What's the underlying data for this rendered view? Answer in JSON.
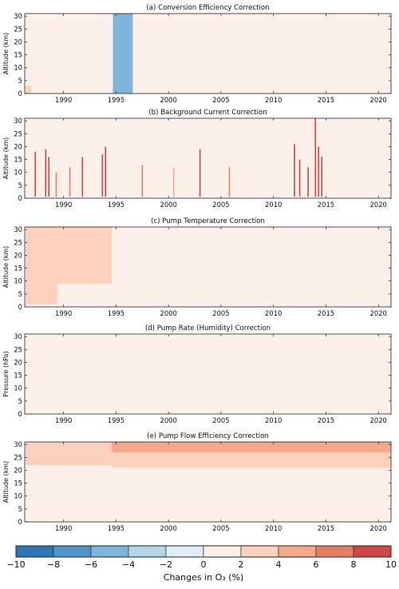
{
  "chart_data": [
    {
      "type": "heatmap",
      "title": "(a) Conversion Efficiency Correction",
      "ylabel": "Altitude (km)",
      "xlim": [
        1986.3,
        2021.2
      ],
      "ylim": [
        0,
        31
      ],
      "xticks": [
        "1990",
        "1995",
        "2000",
        "2005",
        "2010",
        "2015",
        "2020"
      ],
      "yticks": [
        "0",
        "5",
        "10",
        "15",
        "20",
        "25",
        "30"
      ],
      "background_change_percent": 0.7,
      "regions": [
        {
          "label": "mid-1990s negative correction",
          "x_start": 1994.7,
          "x_end": 1996.6,
          "y_range": [
            0,
            31
          ],
          "change_percent": -5
        },
        {
          "label": "early low-level positive correction",
          "x_start": 1986.4,
          "x_end": 1986.9,
          "y_range": [
            0,
            3
          ],
          "change_percent": 2.5
        }
      ]
    },
    {
      "type": "heatmap",
      "title": "(b) Background Current Correction",
      "ylabel": "Altitude (km)",
      "xlim": [
        1986.3,
        2021.2
      ],
      "ylim": [
        0,
        31
      ],
      "xticks": [
        "1990",
        "1995",
        "2000",
        "2005",
        "2010",
        "2015",
        "2020"
      ],
      "yticks": [
        "0",
        "5",
        "10",
        "15",
        "20",
        "25",
        "30"
      ],
      "background_change_percent": 0.7,
      "spikes": [
        {
          "x": 1987.3,
          "top": 18,
          "change_percent": 9
        },
        {
          "x": 1988.3,
          "top": 19,
          "change_percent": 10
        },
        {
          "x": 1988.6,
          "top": 16,
          "change_percent": 8
        },
        {
          "x": 1989.3,
          "top": 10,
          "change_percent": 6
        },
        {
          "x": 1990.6,
          "top": 12,
          "change_percent": 7
        },
        {
          "x": 1991.8,
          "top": 16,
          "change_percent": 8
        },
        {
          "x": 1993.7,
          "top": 17,
          "change_percent": 9
        },
        {
          "x": 1994.0,
          "top": 20,
          "change_percent": 10
        },
        {
          "x": 1997.5,
          "top": 13,
          "change_percent": 6
        },
        {
          "x": 2000.5,
          "top": 12,
          "change_percent": 5
        },
        {
          "x": 2003.0,
          "top": 19,
          "change_percent": 10
        },
        {
          "x": 2005.8,
          "top": 12,
          "change_percent": 7
        },
        {
          "x": 2012.0,
          "top": 21,
          "change_percent": 10
        },
        {
          "x": 2012.5,
          "top": 15,
          "change_percent": 8
        },
        {
          "x": 2013.3,
          "top": 12,
          "change_percent": 8
        },
        {
          "x": 2014.0,
          "top": 31,
          "change_percent": 10
        },
        {
          "x": 2014.3,
          "top": 20,
          "change_percent": 10
        },
        {
          "x": 2014.6,
          "top": 16,
          "change_percent": 8
        }
      ]
    },
    {
      "type": "heatmap",
      "title": "(c) Pump Temperature Correction",
      "ylabel": "Altitude (km)",
      "xlim": [
        1986.3,
        2021.2
      ],
      "ylim": [
        0,
        31
      ],
      "xticks": [
        "1990",
        "1995",
        "2000",
        "2005",
        "2010",
        "2015",
        "2020"
      ],
      "yticks": [
        "0",
        "5",
        "10",
        "15",
        "20",
        "25",
        "30"
      ],
      "background_change_percent": 0.5,
      "regions": [
        {
          "label": "early period full column",
          "x_start": 1986.4,
          "x_end": 1989.4,
          "y_range": [
            1,
            31
          ],
          "change_percent": 3
        },
        {
          "label": "1989-1994 upper layer",
          "x_start": 1989.4,
          "x_end": 1994.6,
          "y_range": [
            9,
            31
          ],
          "change_percent": 3
        },
        {
          "label": "1989-1994 lower layer",
          "x_start": 1989.4,
          "x_end": 1994.6,
          "y_range": [
            1,
            9
          ],
          "change_percent": 1.2
        }
      ]
    },
    {
      "type": "heatmap",
      "title": "(d) Pump Rate (Humidity) Correction",
      "ylabel": "Pressure (hPa)",
      "xlim": [
        1986.3,
        2021.2
      ],
      "ylim": [
        0,
        31
      ],
      "xticks": [
        "1990",
        "1995",
        "2000",
        "2005",
        "2010",
        "2015",
        "2020"
      ],
      "yticks": [
        "0",
        "5",
        "10",
        "15",
        "20",
        "25",
        "30"
      ],
      "background_change_percent": 0.6
    },
    {
      "type": "heatmap",
      "title": "(e) Pump Flow Efficiency Correction",
      "ylabel": "Altitude (km)",
      "xlim": [
        1986.3,
        2021.2
      ],
      "ylim": [
        0,
        31
      ],
      "xticks": [
        "1990",
        "1995",
        "2000",
        "2005",
        "2010",
        "2015",
        "2020"
      ],
      "yticks": [
        "0",
        "5",
        "10",
        "15",
        "20",
        "25",
        "30"
      ],
      "background_change_percent": 0.7,
      "regions": [
        {
          "label": "1986-1994 upper layer",
          "x_start": 1986.4,
          "x_end": 1994.6,
          "y_range": [
            22,
            28.5
          ],
          "change_percent": 2.5
        },
        {
          "label": "1986-1994 top layer",
          "x_start": 1986.4,
          "x_end": 1994.6,
          "y_range": [
            28.5,
            31
          ],
          "change_percent": 3.5
        },
        {
          "label": "1994-2021 middle layer",
          "x_start": 1994.6,
          "x_end": 2021.2,
          "y_range": [
            21,
            27
          ],
          "change_percent": 2.5
        },
        {
          "label": "1994-2021 top layer",
          "x_start": 1994.6,
          "x_end": 2021.2,
          "y_range": [
            27,
            31
          ],
          "change_percent": 4.5
        }
      ]
    }
  ],
  "colorbar": {
    "label": "Changes in O₃ (%)",
    "ticks": [
      "−10",
      "−8",
      "−6",
      "−4",
      "−2",
      "0",
      "2",
      "4",
      "6",
      "8",
      "10"
    ],
    "colors": [
      "#2f74b5",
      "#4f95cb",
      "#7fb5dc",
      "#b2d5ea",
      "#dfedf6",
      "#fcf0ea",
      "#fbd1bb",
      "#f6a98a",
      "#e77e64",
      "#d04843"
    ]
  }
}
